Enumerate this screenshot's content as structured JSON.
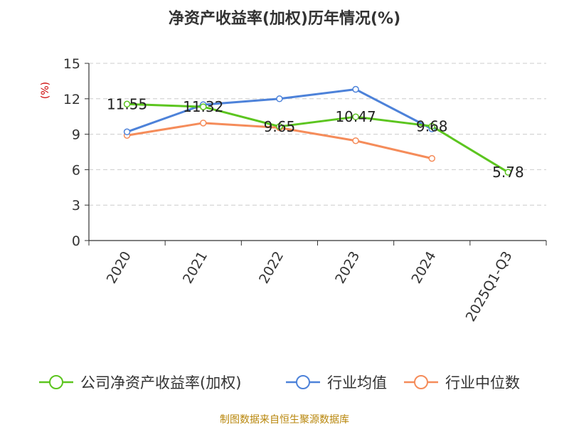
{
  "chart_data": {
    "type": "line",
    "title": "净资产收益率(加权)历年情况(%)",
    "ylabel": "(%)",
    "xlabel": "",
    "categories": [
      "2020",
      "2021",
      "2022",
      "2023",
      "2024",
      "2025Q1-Q3"
    ],
    "ylim": [
      0,
      15
    ],
    "yticks": [
      0,
      3,
      6,
      9,
      12,
      15
    ],
    "grid": true,
    "legend_position": "bottom",
    "series": [
      {
        "name": "公司净资产收益率(加权)",
        "color": "#5cc51f",
        "values": [
          11.55,
          11.32,
          9.65,
          10.47,
          9.68,
          5.78
        ],
        "labels": [
          "11.55",
          "11.32",
          "9.65",
          "10.47",
          "9.68",
          "5.78"
        ]
      },
      {
        "name": "行业均值",
        "color": "#4d82d9",
        "values": [
          9.2,
          11.5,
          12.0,
          12.8,
          9.45,
          null
        ]
      },
      {
        "name": "行业中位数",
        "color": "#f58c5a",
        "values": [
          8.9,
          9.95,
          9.55,
          8.45,
          6.95,
          null
        ]
      }
    ]
  },
  "footer": {
    "source": "制图数据来自恒生聚源数据库"
  }
}
